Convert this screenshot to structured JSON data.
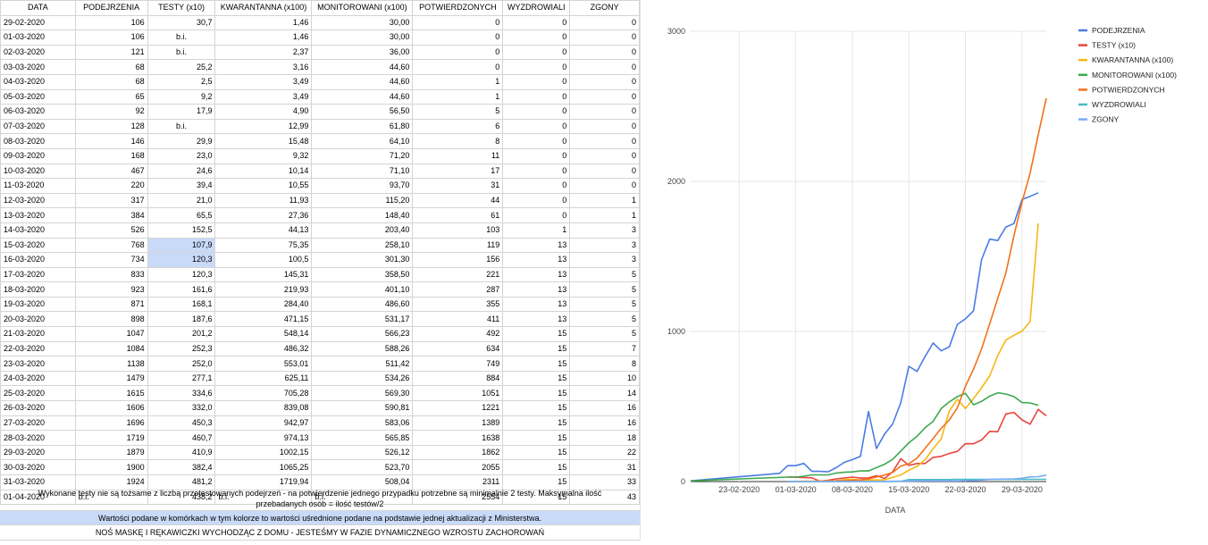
{
  "table": {
    "headers": [
      "DATA",
      "PODEJRZENIA",
      "TESTY (x10)",
      "KWARANTANNA (x100)",
      "MONITOROWANI (x100)",
      "POTWIERDZONYCH",
      "WYZDROWIALI",
      "ZGONY"
    ],
    "rows": [
      [
        "29-02-2020",
        "106",
        "30,7",
        "1,46",
        "30,00",
        "0",
        "0",
        "0"
      ],
      [
        "01-03-2020",
        "106",
        "b.i.",
        "1,46",
        "30,00",
        "0",
        "0",
        "0"
      ],
      [
        "02-03-2020",
        "121",
        "b.i.",
        "2,37",
        "36,00",
        "0",
        "0",
        "0"
      ],
      [
        "03-03-2020",
        "68",
        "25,2",
        "3,16",
        "44,60",
        "0",
        "0",
        "0"
      ],
      [
        "04-03-2020",
        "68",
        "2,5",
        "3,49",
        "44,60",
        "1",
        "0",
        "0"
      ],
      [
        "05-03-2020",
        "65",
        "9,2",
        "3,49",
        "44,60",
        "1",
        "0",
        "0"
      ],
      [
        "06-03-2020",
        "92",
        "17,9",
        "4,90",
        "56,50",
        "5",
        "0",
        "0"
      ],
      [
        "07-03-2020",
        "128",
        "b.i.",
        "12,99",
        "61,80",
        "6",
        "0",
        "0"
      ],
      [
        "08-03-2020",
        "146",
        "29,9",
        "15,48",
        "64,10",
        "8",
        "0",
        "0"
      ],
      [
        "09-03-2020",
        "168",
        "23,0",
        "9,32",
        "71,20",
        "11",
        "0",
        "0"
      ],
      [
        "10-03-2020",
        "467",
        "24,6",
        "10,14",
        "71,10",
        "17",
        "0",
        "0"
      ],
      [
        "11-03-2020",
        "220",
        "39,4",
        "10,55",
        "93,70",
        "31",
        "0",
        "0"
      ],
      [
        "12-03-2020",
        "317",
        "21,0",
        "11,93",
        "115,20",
        "44",
        "0",
        "1"
      ],
      [
        "13-03-2020",
        "384",
        "65,5",
        "27,36",
        "148,40",
        "61",
        "0",
        "1"
      ],
      [
        "14-03-2020",
        "526",
        "152,5",
        "44,13",
        "203,40",
        "103",
        "1",
        "3"
      ],
      [
        "15-03-2020",
        "768",
        "107,9",
        "75,35",
        "258,10",
        "119",
        "13",
        "3"
      ],
      [
        "16-03-2020",
        "734",
        "120,3",
        "100,5",
        "301,30",
        "156",
        "13",
        "3"
      ],
      [
        "17-03-2020",
        "833",
        "120,3",
        "145,31",
        "358,50",
        "221",
        "13",
        "5"
      ],
      [
        "18-03-2020",
        "923",
        "161,6",
        "219,93",
        "401,10",
        "287",
        "13",
        "5"
      ],
      [
        "19-03-2020",
        "871",
        "168,1",
        "284,40",
        "486,60",
        "355",
        "13",
        "5"
      ],
      [
        "20-03-2020",
        "898",
        "187,6",
        "471,15",
        "531,17",
        "411",
        "13",
        "5"
      ],
      [
        "21-03-2020",
        "1047",
        "201,2",
        "548,14",
        "566,23",
        "492",
        "15",
        "5"
      ],
      [
        "22-03-2020",
        "1084",
        "252,3",
        "486,32",
        "588,26",
        "634",
        "15",
        "7"
      ],
      [
        "23-03-2020",
        "1138",
        "252,0",
        "553,01",
        "511,42",
        "749",
        "15",
        "8"
      ],
      [
        "24-03-2020",
        "1479",
        "277,1",
        "625,11",
        "534,26",
        "884",
        "15",
        "10"
      ],
      [
        "25-03-2020",
        "1615",
        "334,6",
        "705,28",
        "569,30",
        "1051",
        "15",
        "14"
      ],
      [
        "26-03-2020",
        "1606",
        "332,0",
        "839,08",
        "590,81",
        "1221",
        "15",
        "16"
      ],
      [
        "27-03-2020",
        "1696",
        "450,3",
        "942,97",
        "583,06",
        "1389",
        "15",
        "16"
      ],
      [
        "28-03-2020",
        "1719",
        "460,7",
        "974,13",
        "565,85",
        "1638",
        "15",
        "18"
      ],
      [
        "29-03-2020",
        "1879",
        "410,9",
        "1002,15",
        "526,12",
        "1862",
        "15",
        "22"
      ],
      [
        "30-03-2020",
        "1900",
        "382,4",
        "1065,25",
        "523,70",
        "2055",
        "15",
        "31"
      ],
      [
        "31-03-2020",
        "1924",
        "481,2",
        "1719,94",
        "508,04",
        "2311",
        "15",
        "33"
      ],
      [
        "01-04-2020",
        "b.i.",
        "438,2",
        "b.i.",
        "b.i.",
        "2554",
        "15",
        "43"
      ]
    ],
    "highlighted_cells": [
      [
        16,
        2
      ],
      [
        17,
        2
      ]
    ]
  },
  "notes": {
    "tests_note": "Wykonane testy nie są tożsame z liczbą przetestowanych podejrzeń - na potwierdzenie jednego przypadku potrzebne są minimalnie 2 testy. Maksymalna ilość przebadanych osób = ilość testów/2",
    "color_note": "Wartości podane w komórkach w tym kolorze to wartości uśrednione podane na podstawie jednej aktualizacji z Ministerstwa.",
    "footer": "NOŚ MASKĘ I RĘKAWICZKI WYCHODZĄC Z DOMU - JESTEŚMY W FAZIE DYNAMICZNEGO WZROSTU ZACHOROWAŃ",
    "highlight_color": "#c9daf8"
  },
  "chart_data": {
    "type": "line",
    "xlabel": "DATA",
    "ylim": [
      0,
      3000
    ],
    "y_ticks": [
      0,
      1000,
      2000,
      3000
    ],
    "x_ticks": [
      "23-02-2020",
      "01-03-2020",
      "08-03-2020",
      "15-03-2020",
      "22-03-2020",
      "29-03-2020"
    ],
    "x_start": "17-02-2020",
    "x_end": "01-04-2020",
    "legend_position": "right",
    "series": [
      {
        "name": "PODEJRZENIA",
        "color": "#4a7be5",
        "x": [
          "17-02-2020",
          "27-02-2020",
          "28-02-2020",
          "29-02-2020",
          "01-03-2020",
          "02-03-2020",
          "03-03-2020",
          "04-03-2020",
          "05-03-2020",
          "06-03-2020",
          "07-03-2020",
          "08-03-2020",
          "09-03-2020",
          "10-03-2020",
          "11-03-2020",
          "12-03-2020",
          "13-03-2020",
          "14-03-2020",
          "15-03-2020",
          "16-03-2020",
          "17-03-2020",
          "18-03-2020",
          "19-03-2020",
          "20-03-2020",
          "21-03-2020",
          "22-03-2020",
          "23-03-2020",
          "24-03-2020",
          "25-03-2020",
          "26-03-2020",
          "27-03-2020",
          "28-03-2020",
          "29-03-2020",
          "30-03-2020",
          "31-03-2020"
        ],
        "values": [
          5,
          50,
          55,
          106,
          106,
          121,
          68,
          68,
          65,
          92,
          128,
          146,
          168,
          467,
          220,
          317,
          384,
          526,
          768,
          734,
          833,
          923,
          871,
          898,
          1047,
          1084,
          1138,
          1479,
          1615,
          1606,
          1696,
          1719,
          1879,
          1900,
          1924
        ]
      },
      {
        "name": "TESTY (x10)",
        "color": "#e8453c",
        "x": [
          "29-02-2020",
          "03-03-2020",
          "04-03-2020",
          "05-03-2020",
          "06-03-2020",
          "08-03-2020",
          "09-03-2020",
          "10-03-2020",
          "11-03-2020",
          "12-03-2020",
          "13-03-2020",
          "14-03-2020",
          "15-03-2020",
          "16-03-2020",
          "17-03-2020",
          "18-03-2020",
          "19-03-2020",
          "20-03-2020",
          "21-03-2020",
          "22-03-2020",
          "23-03-2020",
          "24-03-2020",
          "25-03-2020",
          "26-03-2020",
          "27-03-2020",
          "28-03-2020",
          "29-03-2020",
          "30-03-2020",
          "31-03-2020",
          "01-04-2020"
        ],
        "values": [
          30.7,
          25.2,
          2.5,
          9.2,
          17.9,
          29.9,
          23.0,
          24.6,
          39.4,
          21.0,
          65.5,
          152.5,
          107.9,
          120.3,
          120.3,
          161.6,
          168.1,
          187.6,
          201.2,
          252.3,
          252.0,
          277.1,
          334.6,
          332.0,
          450.3,
          460.7,
          410.9,
          382.4,
          481.2,
          438.2
        ]
      },
      {
        "name": "KWARANTANNA (x100)",
        "color": "#f5b812",
        "x": [
          "29-02-2020",
          "01-03-2020",
          "02-03-2020",
          "03-03-2020",
          "04-03-2020",
          "05-03-2020",
          "06-03-2020",
          "07-03-2020",
          "08-03-2020",
          "09-03-2020",
          "10-03-2020",
          "11-03-2020",
          "12-03-2020",
          "13-03-2020",
          "14-03-2020",
          "15-03-2020",
          "16-03-2020",
          "17-03-2020",
          "18-03-2020",
          "19-03-2020",
          "20-03-2020",
          "21-03-2020",
          "22-03-2020",
          "23-03-2020",
          "24-03-2020",
          "25-03-2020",
          "26-03-2020",
          "27-03-2020",
          "28-03-2020",
          "29-03-2020",
          "30-03-2020",
          "31-03-2020"
        ],
        "values": [
          1.46,
          1.46,
          2.37,
          3.16,
          3.49,
          3.49,
          4.9,
          12.99,
          15.48,
          9.32,
          10.14,
          10.55,
          11.93,
          27.36,
          44.13,
          75.35,
          100.5,
          145.31,
          219.93,
          284.4,
          471.15,
          548.14,
          486.32,
          553.01,
          625.11,
          705.28,
          839.08,
          942.97,
          974.13,
          1002.15,
          1065.25,
          1719.94
        ]
      },
      {
        "name": "MONITOROWANI (x100)",
        "color": "#3da84f",
        "x": [
          "17-02-2020",
          "29-02-2020",
          "01-03-2020",
          "02-03-2020",
          "03-03-2020",
          "04-03-2020",
          "05-03-2020",
          "06-03-2020",
          "07-03-2020",
          "08-03-2020",
          "09-03-2020",
          "10-03-2020",
          "11-03-2020",
          "12-03-2020",
          "13-03-2020",
          "14-03-2020",
          "15-03-2020",
          "16-03-2020",
          "17-03-2020",
          "18-03-2020",
          "19-03-2020",
          "20-03-2020",
          "21-03-2020",
          "22-03-2020",
          "23-03-2020",
          "24-03-2020",
          "25-03-2020",
          "26-03-2020",
          "27-03-2020",
          "28-03-2020",
          "29-03-2020",
          "30-03-2020",
          "31-03-2020"
        ],
        "values": [
          5,
          30.0,
          30.0,
          36.0,
          44.6,
          44.6,
          44.6,
          56.5,
          61.8,
          64.1,
          71.2,
          71.1,
          93.7,
          115.2,
          148.4,
          203.4,
          258.1,
          301.3,
          358.5,
          401.1,
          486.6,
          531.17,
          566.23,
          588.26,
          511.42,
          534.26,
          569.3,
          590.81,
          583.06,
          565.85,
          526.12,
          523.7,
          508.04
        ]
      },
      {
        "name": "POTWIERDZONYCH",
        "color": "#f2711c",
        "x": [
          "29-02-2020",
          "01-03-2020",
          "02-03-2020",
          "03-03-2020",
          "04-03-2020",
          "05-03-2020",
          "06-03-2020",
          "07-03-2020",
          "08-03-2020",
          "09-03-2020",
          "10-03-2020",
          "11-03-2020",
          "12-03-2020",
          "13-03-2020",
          "14-03-2020",
          "15-03-2020",
          "16-03-2020",
          "17-03-2020",
          "18-03-2020",
          "19-03-2020",
          "20-03-2020",
          "21-03-2020",
          "22-03-2020",
          "23-03-2020",
          "24-03-2020",
          "25-03-2020",
          "26-03-2020",
          "27-03-2020",
          "28-03-2020",
          "29-03-2020",
          "30-03-2020",
          "31-03-2020",
          "01-04-2020"
        ],
        "values": [
          0,
          0,
          0,
          0,
          1,
          1,
          5,
          6,
          8,
          11,
          17,
          31,
          44,
          61,
          103,
          119,
          156,
          221,
          287,
          355,
          411,
          492,
          634,
          749,
          884,
          1051,
          1221,
          1389,
          1638,
          1862,
          2055,
          2311,
          2554
        ]
      },
      {
        "name": "WYZDROWIALI",
        "color": "#46bdc6",
        "x": [
          "29-02-2020",
          "13-03-2020",
          "14-03-2020",
          "15-03-2020",
          "20-03-2020",
          "21-03-2020",
          "01-04-2020"
        ],
        "values": [
          0,
          0,
          1,
          13,
          13,
          15,
          15
        ]
      },
      {
        "name": "ZGONY",
        "color": "#7baaf7",
        "x": [
          "29-02-2020",
          "11-03-2020",
          "12-03-2020",
          "14-03-2020",
          "17-03-2020",
          "21-03-2020",
          "22-03-2020",
          "23-03-2020",
          "24-03-2020",
          "25-03-2020",
          "26-03-2020",
          "28-03-2020",
          "29-03-2020",
          "30-03-2020",
          "31-03-2020",
          "01-04-2020"
        ],
        "values": [
          0,
          0,
          1,
          3,
          5,
          5,
          7,
          8,
          10,
          14,
          16,
          18,
          22,
          31,
          33,
          43
        ]
      }
    ]
  }
}
